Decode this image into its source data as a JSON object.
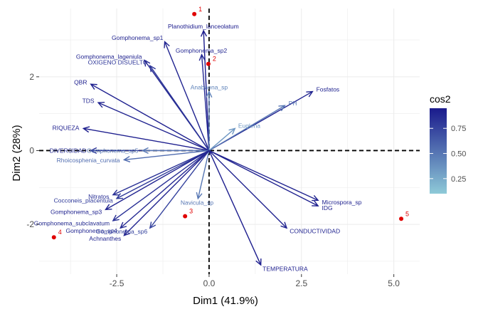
{
  "chart_data": {
    "type": "biplot",
    "xlabel": "Dim1 (41.9%)",
    "ylabel": "Dim2 (28%)",
    "xlim": [
      -4.6,
      5.7
    ],
    "ylim": [
      -3.35,
      3.85
    ],
    "x_ticks": [
      -2.5,
      0.0,
      2.5,
      5.0
    ],
    "x_tick_labels": [
      "-2.5",
      "0.0",
      "2.5",
      "5.0"
    ],
    "y_ticks": [
      -2,
      0,
      2
    ],
    "y_tick_labels": [
      "-2",
      "0",
      "2"
    ],
    "grid": true,
    "reference_lines": {
      "x": 0,
      "y": 0,
      "style": "dashed"
    },
    "legend": {
      "title": "cos2",
      "placement": "right",
      "range": [
        0.1,
        0.95
      ],
      "ticks": [
        0.25,
        0.5,
        0.75
      ],
      "tick_labels": [
        "0.25",
        "0.50",
        "0.75"
      ],
      "color_low": "#8ecad8",
      "color_high": "#1a1a8c"
    },
    "point_color": "#e00000",
    "individuals": [
      {
        "label": "1",
        "x": -0.4,
        "y": 3.7
      },
      {
        "label": "2",
        "x": -0.02,
        "y": 2.35
      },
      {
        "label": "3",
        "x": -0.65,
        "y": -1.78
      },
      {
        "label": "4",
        "x": -4.2,
        "y": -2.35
      },
      {
        "label": "5",
        "x": 5.2,
        "y": -1.85
      }
    ],
    "variables": [
      {
        "name": "Planothidium_lanceolatum",
        "x": -0.15,
        "y": 3.25,
        "cos2": 0.95
      },
      {
        "name": "Gomphonema_sp1",
        "x": -1.2,
        "y": 2.95,
        "cos2": 0.9
      },
      {
        "name": "Gomphonema_sp2",
        "x": -0.2,
        "y": 2.6,
        "cos2": 0.88
      },
      {
        "name": "Gomphonema_lageniula",
        "x": -1.75,
        "y": 2.45,
        "cos2": 0.9
      },
      {
        "name": "OXIGENO DISUELTO",
        "x": -1.6,
        "y": 2.3,
        "cos2": 0.82
      },
      {
        "name": "QBR",
        "x": -3.2,
        "y": 1.8,
        "cos2": 0.92
      },
      {
        "name": "TDS",
        "x": -3.0,
        "y": 1.3,
        "cos2": 0.9
      },
      {
        "name": "Anabaena_sp",
        "x": 0.0,
        "y": 1.6,
        "cos2": 0.45
      },
      {
        "name": "Fosfatos",
        "x": 2.8,
        "y": 1.6,
        "cos2": 0.9
      },
      {
        "name": "PH",
        "x": 2.05,
        "y": 1.22,
        "cos2": 0.5
      },
      {
        "name": "RIQUEZA",
        "x": -3.4,
        "y": 0.6,
        "cos2": 0.93
      },
      {
        "name": "Euglena",
        "x": 0.7,
        "y": 0.6,
        "cos2": 0.35
      },
      {
        "name": "DIVERSIDAD",
        "x": -3.2,
        "y": 0.0,
        "cos2": 0.85
      },
      {
        "name": "Gomphonema_sp5",
        "x": -1.8,
        "y": 0.0,
        "cos2": 0.5
      },
      {
        "name": "Rhoicosphenia_curvata",
        "x": -2.3,
        "y": -0.25,
        "cos2": 0.55
      },
      {
        "name": "Nitratos",
        "x": -2.6,
        "y": -1.2,
        "cos2": 0.85
      },
      {
        "name": "Cocconeis_placentula",
        "x": -2.5,
        "y": -1.3,
        "cos2": 0.8
      },
      {
        "name": "Navicula_sp",
        "x": -0.3,
        "y": -1.3,
        "cos2": 0.5
      },
      {
        "name": "Gomphonema_sp3",
        "x": -2.8,
        "y": -1.6,
        "cos2": 0.9
      },
      {
        "name": "Gomphonema_subclavatum",
        "x": -2.6,
        "y": -1.9,
        "cos2": 0.85
      },
      {
        "name": "Gomphonema_sp4",
        "x": -2.4,
        "y": -2.1,
        "cos2": 0.88
      },
      {
        "name": "Gomphonema_sp6",
        "x": -1.6,
        "y": -2.1,
        "cos2": 0.75
      },
      {
        "name": "Achnanthes",
        "x": -2.3,
        "y": -2.3,
        "cos2": 0.9
      },
      {
        "name": "Microspora_sp",
        "x": 2.95,
        "y": -1.35,
        "cos2": 0.9
      },
      {
        "name": "IDG",
        "x": 2.95,
        "y": -1.5,
        "cos2": 0.92
      },
      {
        "name": "CONDUCTIVIDAD",
        "x": 2.1,
        "y": -2.1,
        "cos2": 0.9
      },
      {
        "name": "TEMPERATURA",
        "x": 1.4,
        "y": -3.1,
        "cos2": 0.93
      }
    ]
  }
}
